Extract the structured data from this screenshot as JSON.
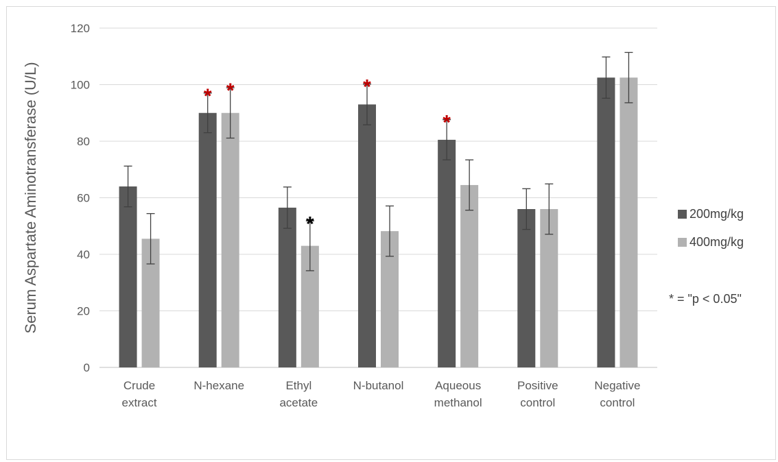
{
  "chart_data": {
    "type": "bar",
    "ylabel": "Serum Aspartate Aminotransferase (U/L)",
    "ylim": [
      0,
      120
    ],
    "yticks": [
      0,
      20,
      40,
      60,
      80,
      100,
      120
    ],
    "grid": true,
    "categories": [
      [
        "Crude",
        "extract"
      ],
      [
        "N-hexane"
      ],
      [
        "Ethyl",
        "acetate"
      ],
      [
        "N-butanol"
      ],
      [
        "Aqueous",
        "methanol"
      ],
      [
        "Positive",
        "control"
      ],
      [
        "Negative",
        "control"
      ]
    ],
    "series": [
      {
        "name": "200mg/kg",
        "color": "#595959",
        "values": [
          64,
          90,
          56.5,
          93,
          80.5,
          56,
          102.5
        ],
        "errors": [
          7.2,
          7,
          7.3,
          7.2,
          7.1,
          7.2,
          7.3
        ],
        "significance": [
          "",
          "*",
          "",
          "*",
          "*",
          "",
          ""
        ],
        "sig_colors": [
          "",
          "#c00000",
          "",
          "#c00000",
          "#c00000",
          "",
          ""
        ]
      },
      {
        "name": "400mg/kg",
        "color": "#b2b2b2",
        "values": [
          45.5,
          90,
          43,
          48.2,
          64.5,
          56,
          102.5
        ],
        "errors": [
          8.9,
          8.9,
          8.8,
          8.9,
          8.9,
          8.9,
          8.9
        ],
        "significance": [
          "",
          "*",
          "*",
          "",
          "",
          "",
          ""
        ],
        "sig_colors": [
          "",
          "#c00000",
          "#000000",
          "",
          "",
          "",
          ""
        ]
      }
    ],
    "legend_position": "right",
    "annotation": "* = \"p < 0.05\"",
    "colors": {
      "grid": "#d9d9d9",
      "axis": "#bfbfbf",
      "error_bar": "#404040",
      "text": "#595959"
    }
  }
}
